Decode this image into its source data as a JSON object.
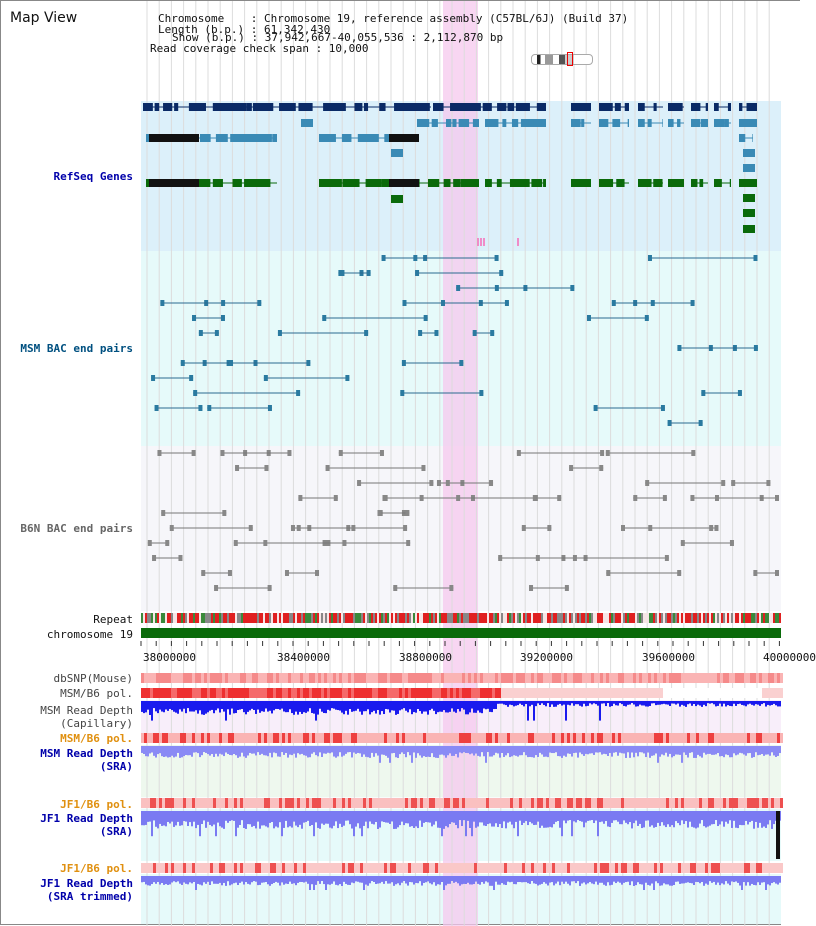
{
  "map_title": "Map View",
  "chromosome_info": {
    "chromosome": "Chromosome    : Chromosome 19, reference assembly (C57BL/6J) (Build 37)",
    "length": "Length (b.p.) : 61,342,430",
    "show": "Show (b.p.) : 37,942,667-40,055,536 : 2,112,870 bp",
    "span": "Read coverage check span : 10,000"
  },
  "tracks": {
    "refseq": "RefSeq Genes",
    "msm_bac": "MSM BAC end pairs",
    "b6n_bac": "B6N BAC end pairs",
    "repeat": "Repeat",
    "chromosome": "chromosome 19",
    "dbsnp": "dbSNP(Mouse)",
    "msm_b6_pol": "MSM/B6 pol.",
    "msm_depth_cap_1": "MSM Read Depth",
    "msm_depth_cap_2": "(Capillary)",
    "msm_b6_pol_2": "MSM/B6 pol.",
    "msm_depth_sra_1": "MSM Read Depth",
    "msm_depth_sra_2": "(SRA)",
    "jf1_b6_pol": "JF1/B6 pol.",
    "jf1_depth_sra_1": "JF1 Read Depth",
    "jf1_depth_sra_2": "(SRA)",
    "jf1_b6_pol_2": "JF1/B6 pol.",
    "jf1_depth_trim_1": "JF1 Read Depth",
    "jf1_depth_trim_2": "(SRA trimmed)"
  },
  "axis_ticks": [
    "38000000",
    "38400000",
    "38800000",
    "39200000",
    "39600000",
    "40000000"
  ],
  "colors": {
    "refseq_dark": "#0a2a66",
    "refseq_mid": "#3a8ab5",
    "refseq_green": "#0a6a0a",
    "refseq_label": "#0000aa",
    "msm_label": "#005080",
    "highlight": "#f5c8ee",
    "chromosome_bar": "#0a6a0a",
    "depth_blue": "#1a1aee",
    "pol_orange": "#e09010"
  }
}
